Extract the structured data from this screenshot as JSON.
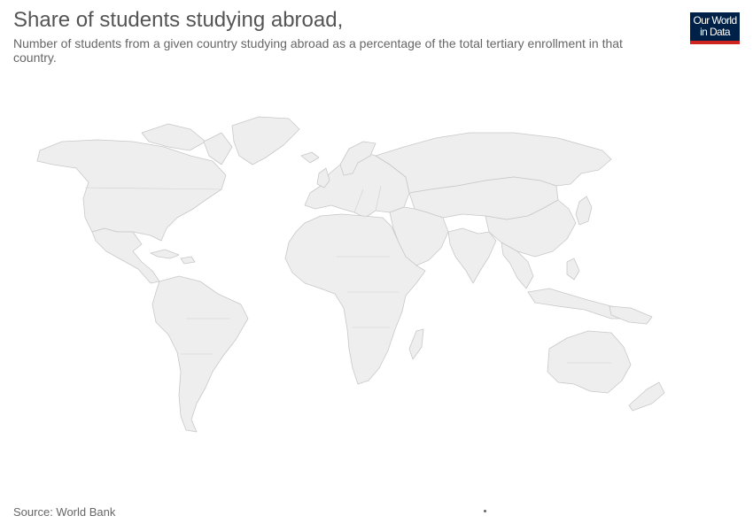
{
  "header": {
    "title": "Share of students studying abroad,",
    "subtitle": "Number of students from a given country studying abroad as a percentage of the total tertiary enrollment in that country."
  },
  "logo": {
    "line1": "Our World",
    "line2": "in Data",
    "colors": {
      "background": "#002147",
      "accent": "#ce261e"
    }
  },
  "map": {
    "type": "choropleth",
    "region": "world",
    "no_data_color": "#eeeeee",
    "border_color": "#c8c8c8"
  },
  "footer": {
    "source": "Source: World Bank"
  }
}
